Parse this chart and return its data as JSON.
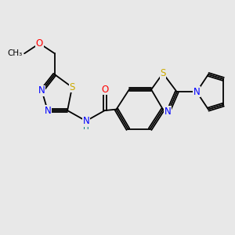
{
  "background_color": "#e8e8e8",
  "bond_color": "#000000",
  "atom_colors": {
    "S": "#ccaa00",
    "N": "#0000ff",
    "O": "#ff0000",
    "H": "#008080",
    "C": "#000000"
  },
  "figsize": [
    3.0,
    3.0
  ],
  "dpi": 100
}
